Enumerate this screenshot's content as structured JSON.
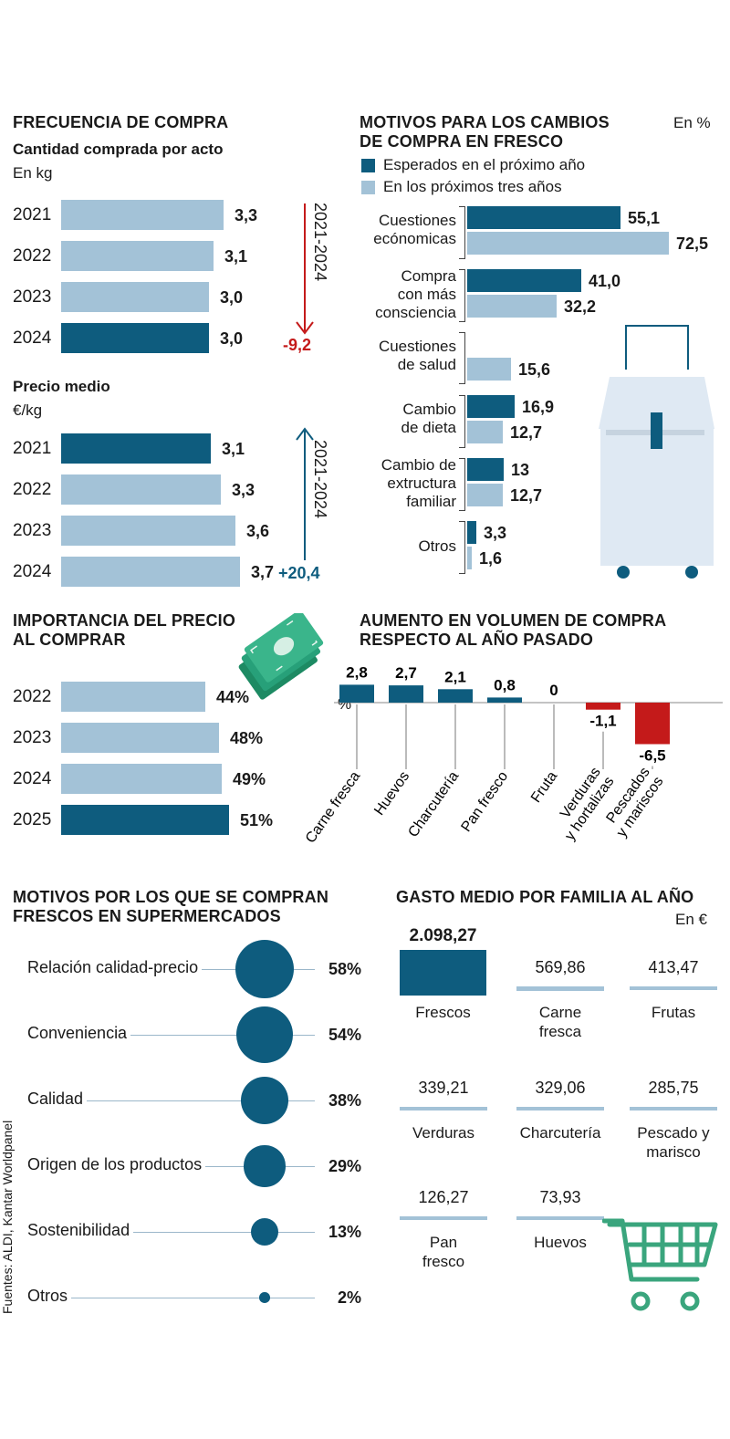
{
  "colors": {
    "dark": "#0e5c7e",
    "light": "#a3c2d7",
    "neg": "#c41a1a",
    "green": "#3aa57d"
  },
  "source": "Fuentes: ALDI, Kantar Worldpanel",
  "frecuencia": {
    "title": "FRECUENCIA DE COMPRA",
    "cantidad": {
      "subtitle": "Cantidad comprada por acto",
      "unit": "En kg",
      "period": "2021-2024",
      "change": "-9,2",
      "rows": [
        {
          "year": "2021",
          "value": 3.3,
          "label": "3,3",
          "highlight": false
        },
        {
          "year": "2022",
          "value": 3.1,
          "label": "3,1",
          "highlight": false
        },
        {
          "year": "2023",
          "value": 3.0,
          "label": "3,0",
          "highlight": false
        },
        {
          "year": "2024",
          "value": 3.0,
          "label": "3,0",
          "highlight": true
        }
      ]
    },
    "precio": {
      "subtitle": "Precio medio",
      "unit": "€/kg",
      "period": "2021-2024",
      "change": "+20,4",
      "rows": [
        {
          "year": "2021",
          "value": 3.1,
          "label": "3,1",
          "highlight": true
        },
        {
          "year": "2022",
          "value": 3.3,
          "label": "3,3",
          "highlight": false
        },
        {
          "year": "2023",
          "value": 3.6,
          "label": "3,6",
          "highlight": false
        },
        {
          "year": "2024",
          "value": 3.7,
          "label": "3,7",
          "highlight": false
        }
      ]
    }
  },
  "motivos_cambios": {
    "title": "MOTIVOS PARA LOS CAMBIOS\nDE COMPRA EN FRESCO",
    "unit": "En %",
    "legend": [
      "Esperados en el próximo año",
      "En los próximos tres años"
    ],
    "categories": [
      {
        "name": "Cuestiones\necónomicas",
        "values": [
          55.1,
          72.5
        ],
        "labels": [
          "55,1",
          "72,5"
        ]
      },
      {
        "name": "Compra\ncon más\nconsciencia",
        "values": [
          41.0,
          32.2
        ],
        "labels": [
          "41,0",
          "32,2"
        ]
      },
      {
        "name": "Cuestiones\nde salud",
        "values": [
          null,
          15.6
        ],
        "labels": [
          "",
          "15,6"
        ]
      },
      {
        "name": "Cambio\nde dieta",
        "values": [
          16.9,
          12.7
        ],
        "labels": [
          "16,9",
          "12,7"
        ]
      },
      {
        "name": "Cambio de\nextructura\nfamiliar",
        "values": [
          13,
          12.7
        ],
        "labels": [
          "13",
          "12,7"
        ]
      },
      {
        "name": "Otros",
        "values": [
          3.3,
          1.6
        ],
        "labels": [
          "3,3",
          "1,6"
        ]
      }
    ]
  },
  "importancia": {
    "title": "IMPORTANCIA DEL PRECIO\nAL COMPRAR",
    "rows": [
      {
        "year": "2022",
        "value": 44,
        "label": "44%",
        "highlight": false
      },
      {
        "year": "2023",
        "value": 48,
        "label": "48%",
        "highlight": false
      },
      {
        "year": "2024",
        "value": 49,
        "label": "49%",
        "highlight": false
      },
      {
        "year": "2025",
        "value": 51,
        "label": "51%",
        "highlight": true
      }
    ]
  },
  "aumento": {
    "title": "AUMENTO EN VOLUMEN DE COMPRA\nRESPECTO AL AÑO PASADO",
    "unit": "%",
    "items": [
      {
        "name": "Carne fresca",
        "value": 2.8,
        "label": "2,8"
      },
      {
        "name": "Huevos",
        "value": 2.7,
        "label": "2,7"
      },
      {
        "name": "Charcutería",
        "value": 2.1,
        "label": "2,1"
      },
      {
        "name": "Pan fresco",
        "value": 0.8,
        "label": "0,8"
      },
      {
        "name": "Fruta",
        "value": 0,
        "label": "0"
      },
      {
        "name": "Verduras\ny hortalizas",
        "value": -1.1,
        "label": "-1,1"
      },
      {
        "name": "Pescados\ny mariscos",
        "value": -6.5,
        "label": "-6,5"
      }
    ]
  },
  "supermercados": {
    "title": "MOTIVOS POR LOS QUE SE COMPRAN\nFRESCOS EN SUPERMERCADOS",
    "items": [
      {
        "name": "Relación calidad-precio",
        "value": 58,
        "label": "58%"
      },
      {
        "name": "Conveniencia",
        "value": 54,
        "label": "54%"
      },
      {
        "name": "Calidad",
        "value": 38,
        "label": "38%"
      },
      {
        "name": "Origen de los productos",
        "value": 29,
        "label": "29%"
      },
      {
        "name": "Sostenibilidad",
        "value": 13,
        "label": "13%"
      },
      {
        "name": "Otros",
        "value": 2,
        "label": "2%"
      }
    ]
  },
  "gasto": {
    "title": "GASTO MEDIO POR FAMILIA AL AÑO",
    "unit": "En €",
    "items": [
      {
        "name": "Frescos",
        "value": 2098.27,
        "label": "2.098,27"
      },
      {
        "name": "Carne\nfresca",
        "value": 569.86,
        "label": "569,86"
      },
      {
        "name": "Frutas",
        "value": 413.47,
        "label": "413,47"
      },
      {
        "name": "Verduras",
        "value": 339.21,
        "label": "339,21"
      },
      {
        "name": "Charcutería",
        "value": 329.06,
        "label": "329,06"
      },
      {
        "name": "Pescado y\nmarisco",
        "value": 285.75,
        "label": "285,75"
      },
      {
        "name": "Pan\nfresco",
        "value": 126.27,
        "label": "126,27"
      },
      {
        "name": "Huevos",
        "value": 73.93,
        "label": "73,93"
      }
    ]
  },
  "chart_data": [
    {
      "type": "bar",
      "title": "Cantidad comprada por acto",
      "ylabel": "En kg",
      "categories": [
        "2021",
        "2022",
        "2023",
        "2024"
      ],
      "values": [
        3.3,
        3.1,
        3.0,
        3.0
      ]
    },
    {
      "type": "bar",
      "title": "Precio medio",
      "ylabel": "€/kg",
      "categories": [
        "2021",
        "2022",
        "2023",
        "2024"
      ],
      "values": [
        3.1,
        3.3,
        3.6,
        3.7
      ]
    },
    {
      "type": "bar",
      "title": "MOTIVOS PARA LOS CAMBIOS DE COMPRA EN FRESCO",
      "categories": [
        "Cuestiones económicas",
        "Compra con más consciencia",
        "Cuestiones de salud",
        "Cambio de dieta",
        "Cambio de extructura familiar",
        "Otros"
      ],
      "series": [
        {
          "name": "Esperados en el próximo año",
          "values": [
            55.1,
            41.0,
            null,
            16.9,
            13,
            3.3
          ]
        },
        {
          "name": "En los próximos tres años",
          "values": [
            72.5,
            32.2,
            15.6,
            12.7,
            12.7,
            1.6
          ]
        }
      ]
    },
    {
      "type": "bar",
      "title": "IMPORTANCIA DEL PRECIO AL COMPRAR",
      "categories": [
        "2022",
        "2023",
        "2024",
        "2025"
      ],
      "values": [
        44,
        48,
        49,
        51
      ]
    },
    {
      "type": "bar",
      "title": "AUMENTO EN VOLUMEN DE COMPRA RESPECTO AL AÑO PASADO",
      "categories": [
        "Carne fresca",
        "Huevos",
        "Charcutería",
        "Pan fresco",
        "Fruta",
        "Verduras y hortalizas",
        "Pescados y mariscos"
      ],
      "values": [
        2.8,
        2.7,
        2.1,
        0.8,
        0,
        -1.1,
        -6.5
      ]
    },
    {
      "type": "scatter",
      "title": "MOTIVOS POR LOS QUE SE COMPRAN FRESCOS EN SUPERMERCADOS",
      "categories": [
        "Relación calidad-precio",
        "Conveniencia",
        "Calidad",
        "Origen de los productos",
        "Sostenibilidad",
        "Otros"
      ],
      "values": [
        58,
        54,
        38,
        29,
        13,
        2
      ]
    },
    {
      "type": "bar",
      "title": "GASTO MEDIO POR FAMILIA AL AÑO",
      "categories": [
        "Frescos",
        "Carne fresca",
        "Frutas",
        "Verduras",
        "Charcutería",
        "Pescado y marisco",
        "Pan fresco",
        "Huevos"
      ],
      "values": [
        2098.27,
        569.86,
        413.47,
        339.21,
        329.06,
        285.75,
        126.27,
        73.93
      ]
    }
  ]
}
